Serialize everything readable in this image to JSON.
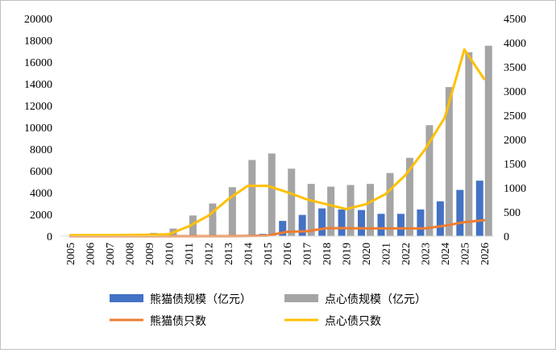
{
  "chart_data": {
    "type": "bar",
    "categories": [
      "2005",
      "2006",
      "2007",
      "2008",
      "2009",
      "2010",
      "2011",
      "2012",
      "2013",
      "2014",
      "2015",
      "2016",
      "2017",
      "2018",
      "2019",
      "2020",
      "2021",
      "2022",
      "2023",
      "2024",
      "2025",
      "2026"
    ],
    "left_axis": {
      "ylim": [
        0,
        20000
      ],
      "ticks": [
        "0",
        "2000",
        "4000",
        "6000",
        "8000",
        "10000",
        "12000",
        "14000",
        "16000",
        "18000",
        "20000"
      ]
    },
    "right_axis": {
      "ylim": [
        0,
        4500
      ],
      "ticks": [
        "0",
        "500",
        "1000",
        "1500",
        "2000",
        "2500",
        "3000",
        "3500",
        "4000",
        "4500"
      ]
    },
    "series": [
      {
        "name": "熊猫债规模（亿元）",
        "kind": "bar",
        "axis": "left",
        "color": "#4472C4",
        "values": [
          0,
          0,
          0,
          0,
          0,
          0,
          0,
          0,
          0,
          0,
          200,
          1400,
          1950,
          2550,
          2450,
          2400,
          2050,
          2050,
          2450,
          3200,
          4250,
          5100
        ]
      },
      {
        "name": "点心债规模（亿元）",
        "kind": "bar",
        "axis": "left",
        "color": "#A5A5A5",
        "values": [
          50,
          100,
          100,
          200,
          300,
          700,
          1900,
          3000,
          4500,
          7000,
          7600,
          6200,
          4800,
          4550,
          4700,
          4800,
          5800,
          7200,
          10200,
          13700,
          16900,
          17500
        ]
      },
      {
        "name": "熊猫债只数",
        "kind": "line",
        "axis": "right",
        "color": "#ED7D31",
        "values": [
          0,
          0,
          0,
          0,
          0,
          0,
          0,
          0,
          0,
          5,
          10,
          90,
          100,
          165,
          165,
          160,
          160,
          160,
          160,
          215,
          290,
          330
        ]
      },
      {
        "name": "点心债只数",
        "kind": "line",
        "axis": "right",
        "color": "#FFC000",
        "values": [
          20,
          20,
          20,
          25,
          30,
          40,
          200,
          420,
          760,
          1040,
          1040,
          910,
          760,
          660,
          560,
          660,
          870,
          1260,
          1790,
          2450,
          3860,
          3250
        ]
      }
    ],
    "grid": false,
    "legend": "bottom"
  }
}
